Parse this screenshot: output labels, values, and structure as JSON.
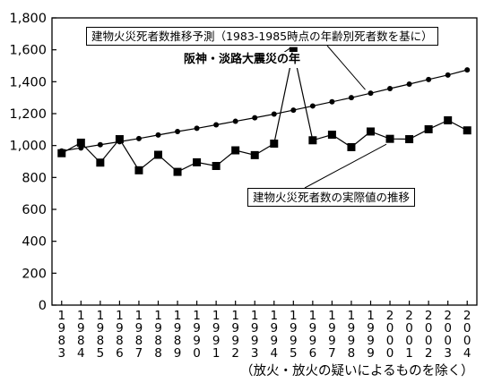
{
  "chart_data": {
    "type": "line",
    "x": [
      "1983",
      "1984",
      "1985",
      "1986",
      "1987",
      "1988",
      "1989",
      "1990",
      "1991",
      "1992",
      "1993",
      "1994",
      "1995",
      "1996",
      "1997",
      "1998",
      "1999",
      "2000",
      "2001",
      "2002",
      "2003",
      "2004"
    ],
    "x_tick_labels": [
      "1\n9\n8\n3",
      "1\n9\n8\n4",
      "1\n9\n8\n5",
      "1\n9\n8\n6",
      "1\n9\n8\n7",
      "1\n9\n8\n8",
      "1\n9\n8\n9",
      "1\n9\n9\n0",
      "1\n9\n9\n1",
      "1\n9\n9\n2",
      "1\n9\n9\n3",
      "1\n9\n9\n4",
      "1\n9\n9\n5",
      "1\n9\n9\n6",
      "1\n9\n9\n7",
      "1\n9\n9\n8",
      "1\n9\n9\n9",
      "2\n0\n0\n0",
      "2\n0\n0\n1",
      "2\n0\n0\n2",
      "2\n0\n0\n3",
      "2\n0\n0\n4"
    ],
    "series": [
      {
        "name": "建物火災死者数推移予測（1983-1985時点の年齢別死者数を基に）",
        "marker": "circle",
        "values": [
          966,
          985,
          1005,
          1024,
          1044,
          1066,
          1088,
          1108,
          1130,
          1152,
          1174,
          1197,
          1222,
          1248,
          1274,
          1300,
          1328,
          1357,
          1385,
          1414,
          1442,
          1474
        ]
      },
      {
        "name": "建物火災死者数の実際値の推移",
        "marker": "square",
        "values": [
          952,
          1018,
          893,
          1040,
          845,
          942,
          835,
          895,
          872,
          970,
          940,
          1012,
          1592,
          1033,
          1068,
          990,
          1088,
          1042,
          1040,
          1102,
          1158,
          1095
        ]
      }
    ],
    "y_ticks": [
      "0",
      "200",
      "400",
      "600",
      "800",
      "1,000",
      "1,200",
      "1,400",
      "1,600",
      "1,800"
    ],
    "ylim": [
      0,
      1800
    ],
    "annotations": {
      "forecast_label": "建物火災死者数推移予測（1983-1985時点の年齢別死者数を基に）",
      "quake_label": "阪神・淡路大震災の年",
      "actual_label": "建物火災死者数の実際値の推移"
    },
    "footnote": "（放火・放火の疑いによるものを除く）"
  }
}
